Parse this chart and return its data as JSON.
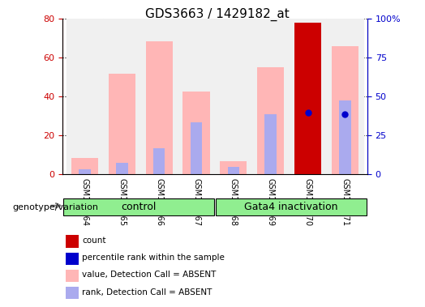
{
  "title": "GDS3663 / 1429182_at",
  "samples": [
    "GSM120064",
    "GSM120065",
    "GSM120066",
    "GSM120067",
    "GSM120068",
    "GSM120069",
    "GSM120070",
    "GSM120071"
  ],
  "groups": [
    {
      "name": "control",
      "samples": [
        "GSM120064",
        "GSM120065",
        "GSM120066",
        "GSM120067"
      ],
      "color": "#90EE90"
    },
    {
      "name": "Gata4 inactivation",
      "samples": [
        "GSM120068",
        "GSM120069",
        "GSM120070",
        "GSM120071"
      ],
      "color": "#90EE90"
    }
  ],
  "pink_bar_values": [
    8.5,
    52,
    68.5,
    42.5,
    7,
    55,
    0,
    66
  ],
  "blue_bar_values": [
    2.5,
    6,
    13.5,
    27,
    4,
    31,
    0,
    38
  ],
  "red_bar_values": [
    0,
    0,
    0,
    0,
    0,
    0,
    78,
    0
  ],
  "blue_dot_values": [
    0,
    0,
    0,
    0,
    0,
    0,
    40,
    39
  ],
  "ylim_left": [
    0,
    80
  ],
  "ylim_right": [
    0,
    100
  ],
  "yticks_left": [
    0,
    20,
    40,
    60,
    80
  ],
  "yticks_right": [
    0,
    25,
    50,
    75,
    100
  ],
  "ytick_labels_right": [
    "0",
    "25",
    "50",
    "75",
    "100%"
  ],
  "left_axis_color": "#cc0000",
  "right_axis_color": "#0000cc",
  "pink_color": "#FFB6B6",
  "blue_bar_color": "#AAAAEE",
  "red_color": "#cc0000",
  "blue_dot_color": "#0000cc",
  "legend_items": [
    {
      "label": "count",
      "color": "#cc0000",
      "marker": "s"
    },
    {
      "label": "percentile rank within the sample",
      "color": "#0000cc",
      "marker": "s"
    },
    {
      "label": "value, Detection Call = ABSENT",
      "color": "#FFB6B6",
      "marker": "s"
    },
    {
      "label": "rank, Detection Call = ABSENT",
      "color": "#AAAAEE",
      "marker": "s"
    }
  ],
  "bar_width": 0.4,
  "background_color": "#f0f0f0"
}
